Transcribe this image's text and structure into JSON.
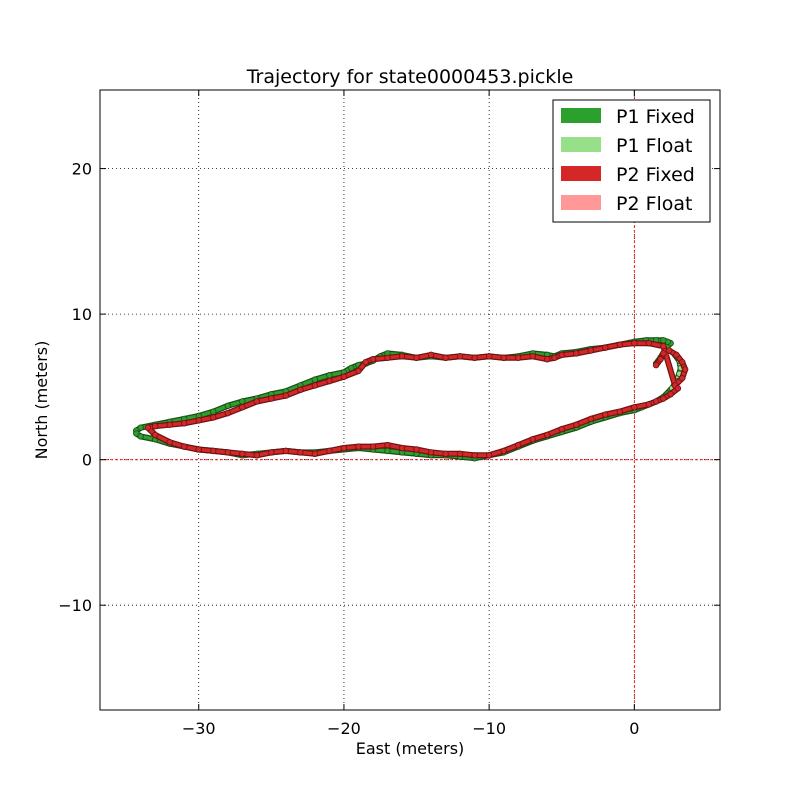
{
  "chart_data": {
    "type": "scatter",
    "title": "Trajectory for state0000453.pickle",
    "xlabel": "East (meters)",
    "ylabel": "North (meters)",
    "xlim": [
      -36.8,
      5.9
    ],
    "ylim": [
      -17.2,
      25.4
    ],
    "xticks": [
      -30,
      -20,
      -10,
      0
    ],
    "yticks": [
      -10,
      0,
      10,
      20
    ],
    "xtick_labels": [
      "−30",
      "−20",
      "−10",
      "0"
    ],
    "ytick_labels": [
      "−10",
      "0",
      "10",
      "20"
    ],
    "grid": true,
    "legend_position": "top-right",
    "reference_lines": {
      "x": 0,
      "y": 0,
      "color": "#ff0000"
    },
    "colors": {
      "p1_fixed": "#2ca02c",
      "p1_float": "#98df8a",
      "p2_fixed": "#d62728",
      "p2_float": "#ff9896",
      "p1_marker_edge": "#1a4d1a",
      "p2_marker_edge": "#6b1414"
    },
    "legend": [
      {
        "label": "P1 Fixed",
        "color": "#2ca02c"
      },
      {
        "label": "P1 Float",
        "color": "#98df8a"
      },
      {
        "label": "P2 Fixed",
        "color": "#d62728"
      },
      {
        "label": "P2 Float",
        "color": "#ff9896"
      }
    ],
    "series": [
      {
        "name": "P1 Fixed",
        "color": "#2ca02c",
        "x": [
          1.5,
          1.8,
          2.1,
          2.3,
          2.5,
          2.3,
          2.0,
          1.5,
          0.8,
          0.0,
          -1.0,
          -2.0,
          -3.0,
          -4.0,
          -5.0,
          -5.5,
          -6.0,
          -7.0,
          -8.0,
          -9.0,
          -10.0,
          -11.0,
          -12.0,
          -13.0,
          -14.0,
          -15.0,
          -16.0,
          -17.0,
          -17.5,
          -18.0,
          -18.5,
          -19.0,
          -19.5,
          -20.0,
          -21.0,
          -22.0,
          -23.0,
          -24.0,
          -25.0,
          -26.0,
          -27.0,
          -28.0,
          -29.0,
          -30.0,
          -31.0,
          -32.0,
          -33.0,
          -34.0,
          -34.3,
          -34.3,
          -34.0,
          -33.0,
          -32.0,
          -31.0,
          -30.0,
          -29.0,
          -28.0,
          -27.0,
          -26.0,
          -25.0,
          -24.0,
          -23.0,
          -22.0,
          -21.0,
          -20.0,
          -19.0,
          -18.0,
          -17.0,
          -16.0,
          -15.0,
          -14.0,
          -13.0,
          -12.0,
          -11.0,
          -10.0,
          -9.0,
          -8.0,
          -7.0,
          -6.0,
          -5.0,
          -4.0,
          -3.0,
          -2.0,
          -1.0,
          0.0,
          0.5,
          1.0,
          1.5,
          2.0,
          2.5
        ],
        "y": [
          6.6,
          7.0,
          7.5,
          7.8,
          8.0,
          8.1,
          8.2,
          8.2,
          8.2,
          8.1,
          7.9,
          7.7,
          7.6,
          7.4,
          7.3,
          7.1,
          7.2,
          7.3,
          7.1,
          7.0,
          7.1,
          7.0,
          7.1,
          7.0,
          7.1,
          7.0,
          7.2,
          7.3,
          7.1,
          6.8,
          6.6,
          6.5,
          6.3,
          6.0,
          5.8,
          5.5,
          5.1,
          4.7,
          4.5,
          4.2,
          4.0,
          3.7,
          3.3,
          3.0,
          2.8,
          2.6,
          2.4,
          2.2,
          2.0,
          1.8,
          1.6,
          1.4,
          1.1,
          0.9,
          0.7,
          0.6,
          0.5,
          0.3,
          0.4,
          0.5,
          0.6,
          0.5,
          0.5,
          0.6,
          0.7,
          0.8,
          0.7,
          0.6,
          0.5,
          0.4,
          0.3,
          0.3,
          0.2,
          0.1,
          0.3,
          0.5,
          0.9,
          1.3,
          1.6,
          1.9,
          2.2,
          2.6,
          2.9,
          3.2,
          3.4,
          3.6,
          3.8,
          4.0,
          4.3,
          4.8
        ]
      },
      {
        "name": "P1 Float",
        "color": "#98df8a",
        "x": [
          2.6,
          2.9,
          3.1,
          3.2,
          3.1,
          2.8
        ],
        "y": [
          4.9,
          5.4,
          5.9,
          6.3,
          6.8,
          7.2
        ]
      },
      {
        "name": "P2 Fixed",
        "color": "#d62728",
        "x": [
          1.5,
          1.8,
          2.0,
          2.4,
          2.9,
          3.3,
          3.5,
          3.3,
          2.8,
          2.0,
          1.0,
          0.0,
          -1.0,
          -2.0,
          -3.0,
          -4.0,
          -5.0,
          -5.5,
          -6.0,
          -7.0,
          -8.0,
          -9.0,
          -10.0,
          -11.0,
          -12.0,
          -13.0,
          -14.0,
          -15.0,
          -16.0,
          -17.0,
          -18.0,
          -18.5,
          -19.0,
          -20.0,
          -21.0,
          -22.0,
          -23.0,
          -24.0,
          -25.0,
          -26.0,
          -27.0,
          -28.0,
          -29.0,
          -30.0,
          -31.0,
          -32.0,
          -33.0,
          -33.5,
          -33.0,
          -32.0,
          -31.0,
          -30.0,
          -29.0,
          -28.0,
          -27.0,
          -26.0,
          -25.0,
          -24.0,
          -23.0,
          -22.0,
          -21.0,
          -20.0,
          -19.0,
          -18.0,
          -17.0,
          -16.0,
          -15.0,
          -14.0,
          -13.0,
          -12.0,
          -11.0,
          -10.0,
          -9.0,
          -8.0,
          -7.0,
          -6.0,
          -5.0,
          -4.0,
          -3.0,
          -2.0,
          -1.0,
          0.0,
          1.0,
          1.5,
          2.0,
          2.5,
          3.0
        ],
        "y": [
          6.5,
          6.9,
          7.3,
          7.5,
          7.2,
          6.7,
          6.2,
          5.6,
          5.1,
          7.8,
          8.0,
          8.0,
          7.9,
          7.7,
          7.5,
          7.3,
          7.2,
          7.0,
          6.9,
          7.1,
          7.0,
          7.0,
          7.1,
          7.0,
          7.1,
          7.0,
          7.2,
          7.0,
          7.1,
          7.0,
          6.9,
          6.7,
          6.1,
          5.7,
          5.4,
          5.1,
          4.8,
          4.4,
          4.2,
          4.0,
          3.6,
          3.2,
          2.9,
          2.7,
          2.5,
          2.4,
          2.3,
          2.2,
          1.7,
          1.2,
          0.9,
          0.7,
          0.6,
          0.5,
          0.4,
          0.3,
          0.5,
          0.6,
          0.5,
          0.4,
          0.6,
          0.8,
          0.9,
          0.9,
          1.0,
          0.8,
          0.7,
          0.5,
          0.4,
          0.4,
          0.3,
          0.3,
          0.6,
          1.0,
          1.4,
          1.7,
          2.1,
          2.4,
          2.8,
          3.1,
          3.3,
          3.6,
          3.8,
          4.0,
          4.2,
          4.5,
          4.9
        ]
      },
      {
        "name": "P2 Float",
        "color": "#ff9896",
        "x": [],
        "y": []
      }
    ]
  }
}
